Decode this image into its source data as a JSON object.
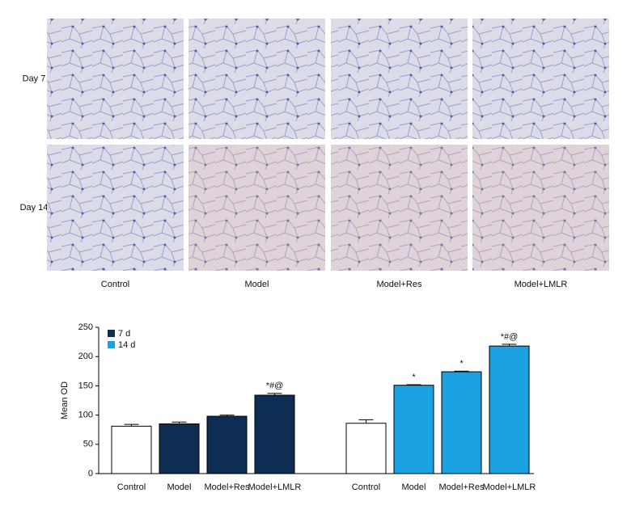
{
  "panels": {
    "rows": [
      "Day 7",
      "Day 14"
    ],
    "columns": [
      "Control",
      "Model",
      "Model+Res",
      "Model+LMLR"
    ]
  },
  "chart_data": {
    "type": "bar",
    "categories": [
      "Control",
      "Model",
      "Model+Res",
      "Model+LMLR"
    ],
    "series": [
      {
        "name": "7 d",
        "color": "#0d2d52",
        "values": [
          81,
          85,
          98,
          134
        ],
        "errors": [
          3,
          3,
          2,
          3
        ],
        "annotations": [
          null,
          null,
          null,
          "*#@"
        ]
      },
      {
        "name": "14 d",
        "color": "#1ba1e2",
        "values": [
          86,
          151,
          174,
          218
        ],
        "errors": [
          6,
          1,
          1,
          3
        ],
        "annotations": [
          null,
          "*",
          "*",
          "*#@"
        ]
      }
    ],
    "control_color": "#ffffff",
    "ylabel": "Mean OD",
    "ylim": [
      0,
      250
    ],
    "yticks": [
      0,
      50,
      100,
      150,
      200,
      250
    ],
    "legend": "upper left"
  }
}
